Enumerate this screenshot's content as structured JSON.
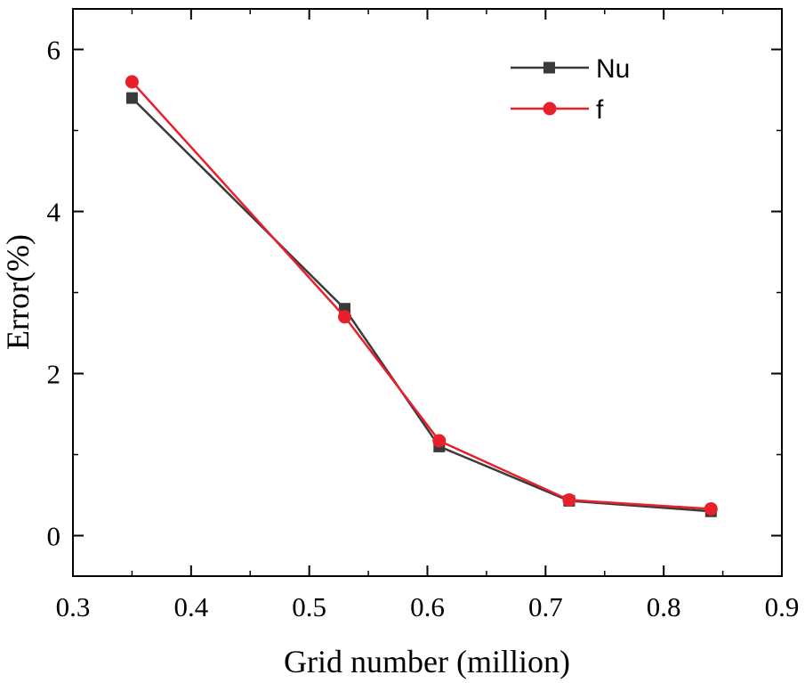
{
  "chart_data": {
    "type": "line",
    "title": "",
    "xlabel": "Grid number (million)",
    "ylabel": "Error(%)",
    "xlim": [
      0.3,
      0.9
    ],
    "ylim": [
      -0.5,
      6.5
    ],
    "x_ticks": [
      0.3,
      0.4,
      0.5,
      0.6,
      0.7,
      0.8,
      0.9
    ],
    "x_tick_labels": [
      "0.3",
      "0.4",
      "0.5",
      "0.6",
      "0.7",
      "0.8",
      "0.9"
    ],
    "y_ticks": [
      0,
      2,
      4,
      6
    ],
    "y_tick_labels": [
      "0",
      "2",
      "4",
      "6"
    ],
    "x_minor_ticks": [
      0.35,
      0.45,
      0.55,
      0.65,
      0.75,
      0.85
    ],
    "y_minor_ticks": [
      1,
      3,
      5
    ],
    "grid": false,
    "legend_position": "top-right",
    "series": [
      {
        "name": "Nu",
        "color": "#3a3a3a",
        "marker": "square",
        "x": [
          0.35,
          0.53,
          0.61,
          0.72,
          0.84
        ],
        "values": [
          5.4,
          2.8,
          1.1,
          0.43,
          0.3
        ]
      },
      {
        "name": "f",
        "color": "#e8202a",
        "marker": "circle",
        "x": [
          0.35,
          0.53,
          0.61,
          0.72,
          0.84
        ],
        "values": [
          5.6,
          2.7,
          1.17,
          0.44,
          0.33
        ]
      }
    ]
  }
}
